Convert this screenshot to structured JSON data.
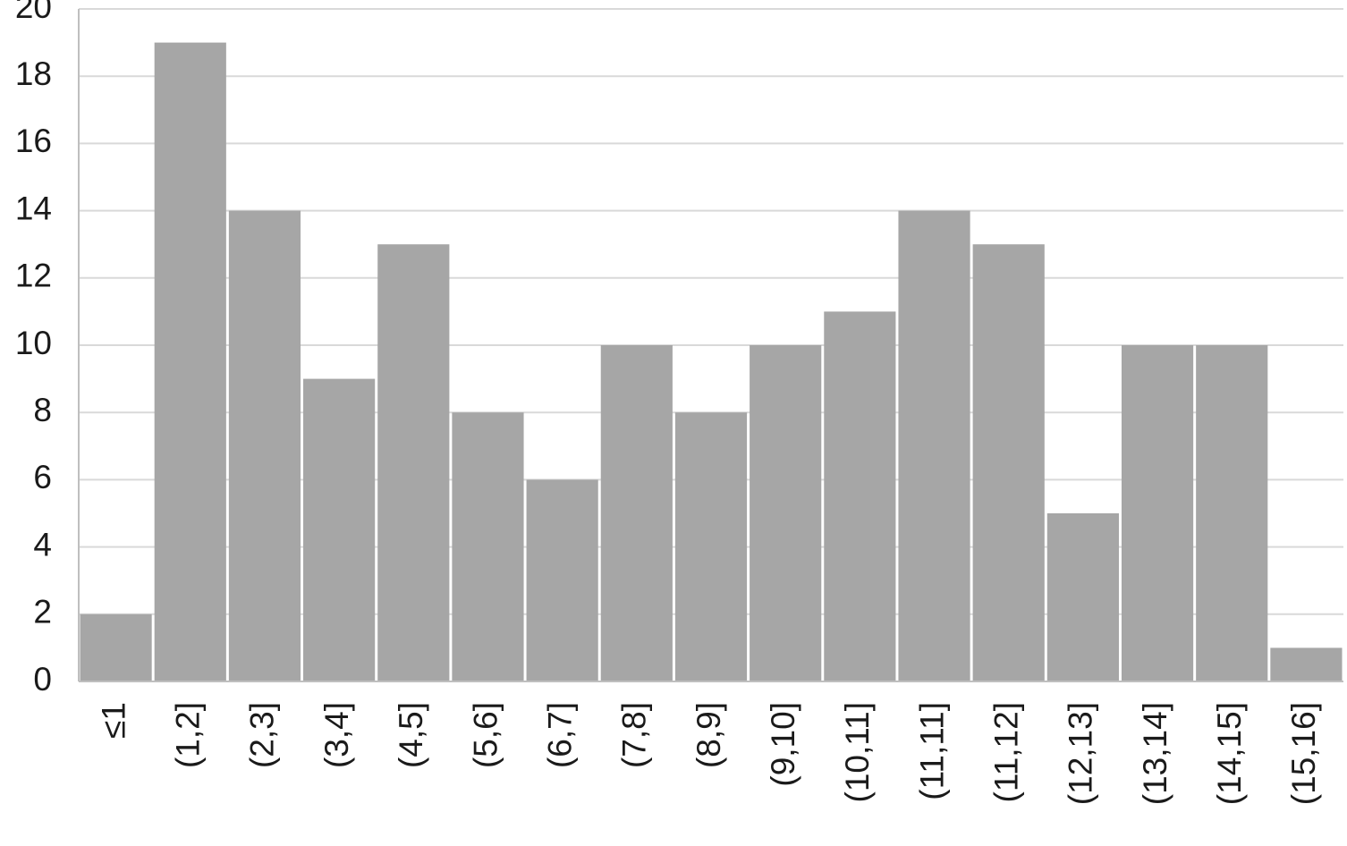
{
  "chart_data": {
    "type": "bar",
    "categories": [
      "≤1",
      "(1,2]",
      "(2,3]",
      "(3,4]",
      "(4,5]",
      "(5,6]",
      "(6,7]",
      "(7,8]",
      "(8,9]",
      "(9,10]",
      "(10,11]",
      "(11,11]",
      "(11,12]",
      "(12,13]",
      "(13,14]",
      "(14,15]",
      "(15,16]"
    ],
    "values": [
      2,
      19,
      14,
      9,
      13,
      8,
      6,
      10,
      8,
      10,
      11,
      14,
      13,
      5,
      10,
      10,
      1
    ],
    "color": "#a6a6a6",
    "ylim": [
      0,
      20
    ],
    "yticks": [
      0,
      2,
      4,
      6,
      8,
      10,
      12,
      14,
      16,
      18,
      20
    ],
    "grid": true
  }
}
